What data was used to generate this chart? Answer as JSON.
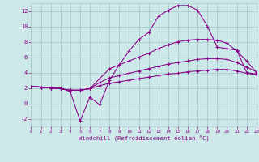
{
  "background_color": "#cce8e8",
  "grid_color": "#aacaca",
  "line_color": "#880088",
  "xlim": [
    0,
    23
  ],
  "ylim": [
    -3,
    13
  ],
  "x_ticks": [
    0,
    1,
    2,
    3,
    4,
    5,
    6,
    7,
    8,
    9,
    10,
    11,
    12,
    13,
    14,
    15,
    16,
    17,
    18,
    19,
    20,
    21,
    22,
    23
  ],
  "y_ticks": [
    -2,
    0,
    2,
    4,
    6,
    8,
    10,
    12
  ],
  "xlabel": "Windchill (Refroidissement éolien,°C)",
  "curve1_x": [
    0,
    1,
    2,
    3,
    4,
    5,
    6,
    7,
    8,
    9,
    10,
    11,
    12,
    13,
    14,
    15,
    16,
    17,
    18,
    19,
    20,
    21,
    22,
    23
  ],
  "curve1_y": [
    2.2,
    2.1,
    2.1,
    2.0,
    1.5,
    -2.3,
    0.8,
    -0.2,
    3.0,
    5.0,
    6.8,
    8.3,
    9.2,
    11.3,
    12.1,
    12.7,
    12.7,
    12.1,
    10.0,
    7.3,
    7.1,
    6.9,
    4.0,
    3.8
  ],
  "curve2_x": [
    0,
    1,
    2,
    3,
    4,
    5,
    6,
    7,
    8,
    9,
    10,
    11,
    12,
    13,
    14,
    15,
    16,
    17,
    18,
    19,
    20,
    21,
    22,
    23
  ],
  "curve2_y": [
    2.2,
    2.1,
    2.0,
    1.9,
    1.7,
    1.7,
    1.9,
    3.2,
    4.5,
    5.0,
    5.5,
    6.0,
    6.5,
    7.1,
    7.6,
    8.0,
    8.2,
    8.3,
    8.3,
    8.2,
    7.8,
    6.8,
    5.5,
    4.0
  ],
  "curve3_x": [
    0,
    1,
    2,
    3,
    4,
    5,
    6,
    7,
    8,
    9,
    10,
    11,
    12,
    13,
    14,
    15,
    16,
    17,
    18,
    19,
    20,
    21,
    22,
    23
  ],
  "curve3_y": [
    2.2,
    2.1,
    2.0,
    1.9,
    1.7,
    1.7,
    1.9,
    2.7,
    3.3,
    3.6,
    3.9,
    4.2,
    4.5,
    4.8,
    5.1,
    5.3,
    5.5,
    5.7,
    5.8,
    5.8,
    5.7,
    5.3,
    4.7,
    4.1
  ],
  "curve4_x": [
    0,
    1,
    2,
    3,
    4,
    5,
    6,
    7,
    8,
    9,
    10,
    11,
    12,
    13,
    14,
    15,
    16,
    17,
    18,
    19,
    20,
    21,
    22,
    23
  ],
  "curve4_y": [
    2.2,
    2.1,
    2.0,
    1.9,
    1.7,
    1.7,
    1.9,
    2.3,
    2.6,
    2.8,
    3.0,
    3.2,
    3.4,
    3.6,
    3.8,
    3.9,
    4.1,
    4.2,
    4.3,
    4.4,
    4.4,
    4.2,
    3.9,
    3.7
  ]
}
